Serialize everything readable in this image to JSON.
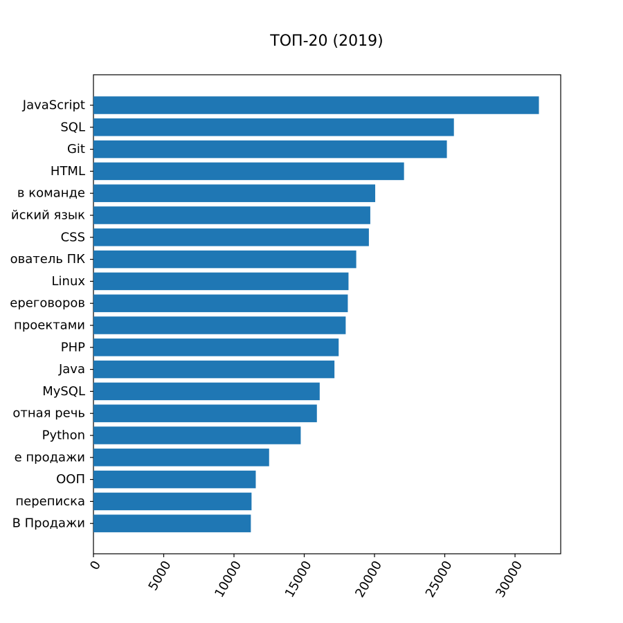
{
  "chart_data": {
    "type": "bar",
    "orientation": "horizontal",
    "title": "ТОП-20 (2019)",
    "xlabel": "",
    "ylabel": "",
    "categories": [
      "JavaScript",
      "SQL",
      "Git",
      "HTML",
      "в команде",
      "йский язык",
      "CSS",
      "ователь ПК",
      "Linux",
      "ереговоров",
      "проектами",
      "PHP",
      "Java",
      "MySQL",
      "отная речь",
      "Python",
      "е продажи",
      "ООП",
      "переписка",
      "В Продажи"
    ],
    "values": [
      31700,
      25650,
      25150,
      22100,
      20050,
      19700,
      19600,
      18700,
      18150,
      18100,
      17950,
      17450,
      17150,
      16100,
      15900,
      14750,
      12500,
      11550,
      11250,
      11200
    ],
    "xlim": [
      0,
      33250
    ],
    "xticks": [
      {
        "value": 0,
        "label": "0"
      },
      {
        "value": 5000,
        "label": "5000"
      },
      {
        "value": 10000,
        "label": "10000"
      },
      {
        "value": 15000,
        "label": "15000"
      },
      {
        "value": 20000,
        "label": "20000"
      },
      {
        "value": 25000,
        "label": "25000"
      },
      {
        "value": 30000,
        "label": "30000"
      }
    ],
    "xtick_rotation_deg": 60,
    "bar_color": "#1f77b4",
    "grid": false,
    "legend": "none"
  }
}
